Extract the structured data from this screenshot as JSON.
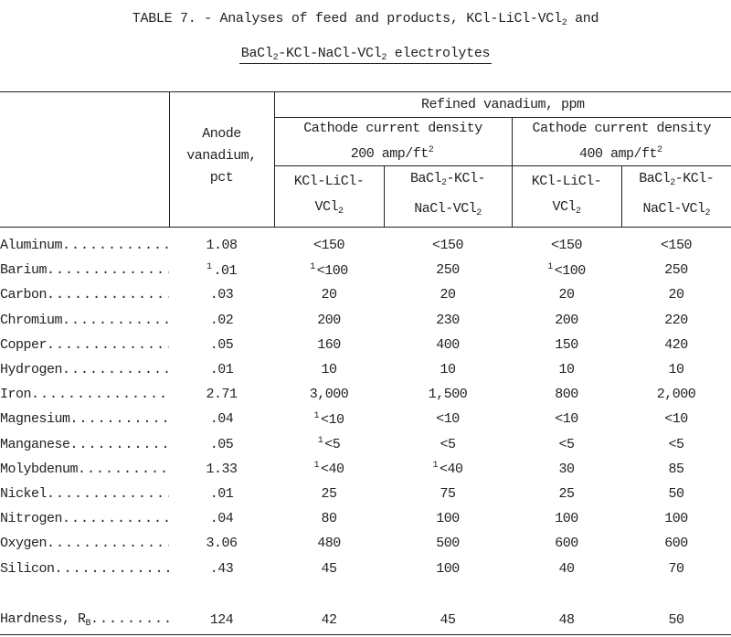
{
  "title": {
    "lines": [
      [
        "TABLE 7. - Analyses of feed and products, KCl-LiCl-VCl",
        {
          "sub": "2"
        },
        " and"
      ],
      [
        "BaCl",
        {
          "sub": "2"
        },
        "-KCl-NaCl-VCl",
        {
          "sub": "2"
        },
        " electrolytes"
      ]
    ]
  },
  "header": {
    "refined": "Refined vanadium, ppm",
    "anode": [
      [
        "Anode"
      ],
      [
        "vanadium,"
      ],
      [
        "pct"
      ]
    ],
    "groups": [
      [
        [
          "Cathode current density"
        ],
        [
          "200 amp/ft",
          {
            "sup": "2"
          }
        ]
      ],
      [
        [
          "Cathode current density"
        ],
        [
          "400 amp/ft",
          {
            "sup": "2"
          }
        ]
      ]
    ],
    "columns": [
      [
        [
          "KCl-LiCl-"
        ],
        [
          "VCl",
          {
            "sub": "2"
          }
        ]
      ],
      [
        [
          "BaCl",
          {
            "sub": "2"
          },
          "-KCl-"
        ],
        [
          "NaCl-VCl",
          {
            "sub": "2"
          }
        ]
      ],
      [
        [
          "KCl-LiCl-"
        ],
        [
          "VCl",
          {
            "sub": "2"
          }
        ]
      ],
      [
        [
          "BaCl",
          {
            "sub": "2"
          },
          "-KCl-"
        ],
        [
          "NaCl-VCl",
          {
            "sub": "2"
          }
        ]
      ]
    ]
  },
  "table": {
    "rows": [
      [
        "Aluminum",
        "1.08",
        "<150",
        "<150",
        "<150",
        "<150"
      ],
      [
        "Barium",
        [
          {
            "sup": "1"
          },
          ".01"
        ],
        [
          {
            "sup": "1"
          },
          "<100"
        ],
        "250",
        [
          {
            "sup": "1"
          },
          "<100"
        ],
        "250"
      ],
      [
        "Carbon",
        ".03",
        "20",
        "20",
        "20",
        "20"
      ],
      [
        "Chromium",
        ".02",
        "200",
        "230",
        "200",
        "220"
      ],
      [
        "Copper",
        ".05",
        "160",
        "400",
        "150",
        "420"
      ],
      [
        "Hydrogen",
        ".01",
        "10",
        "10",
        "10",
        "10"
      ],
      [
        "Iron",
        "2.71",
        "3,000",
        "1,500",
        "800",
        "2,000"
      ],
      [
        "Magnesium",
        ".04",
        [
          {
            "sup": "1"
          },
          "<10"
        ],
        "<10",
        "<10",
        "<10"
      ],
      [
        "Manganese",
        ".05",
        [
          {
            "sup": "1"
          },
          "<5"
        ],
        "<5",
        "<5",
        "<5"
      ],
      [
        "Molybdenum",
        "1.33",
        [
          {
            "sup": "1"
          },
          "<40"
        ],
        [
          {
            "sup": "1"
          },
          "<40"
        ],
        "30",
        "85"
      ],
      [
        "Nickel",
        ".01",
        "25",
        "75",
        "25",
        "50"
      ],
      [
        "Nitrogen",
        ".04",
        "80",
        "100",
        "100",
        "100"
      ],
      [
        "Oxygen",
        "3.06",
        "480",
        "500",
        "600",
        "600"
      ],
      [
        "Silicon",
        ".43",
        "45",
        "100",
        "40",
        "70"
      ],
      [
        [
          "Hardness, R",
          {
            "sub": "B"
          }
        ],
        "124",
        "42",
        "45",
        "48",
        "50"
      ]
    ]
  }
}
